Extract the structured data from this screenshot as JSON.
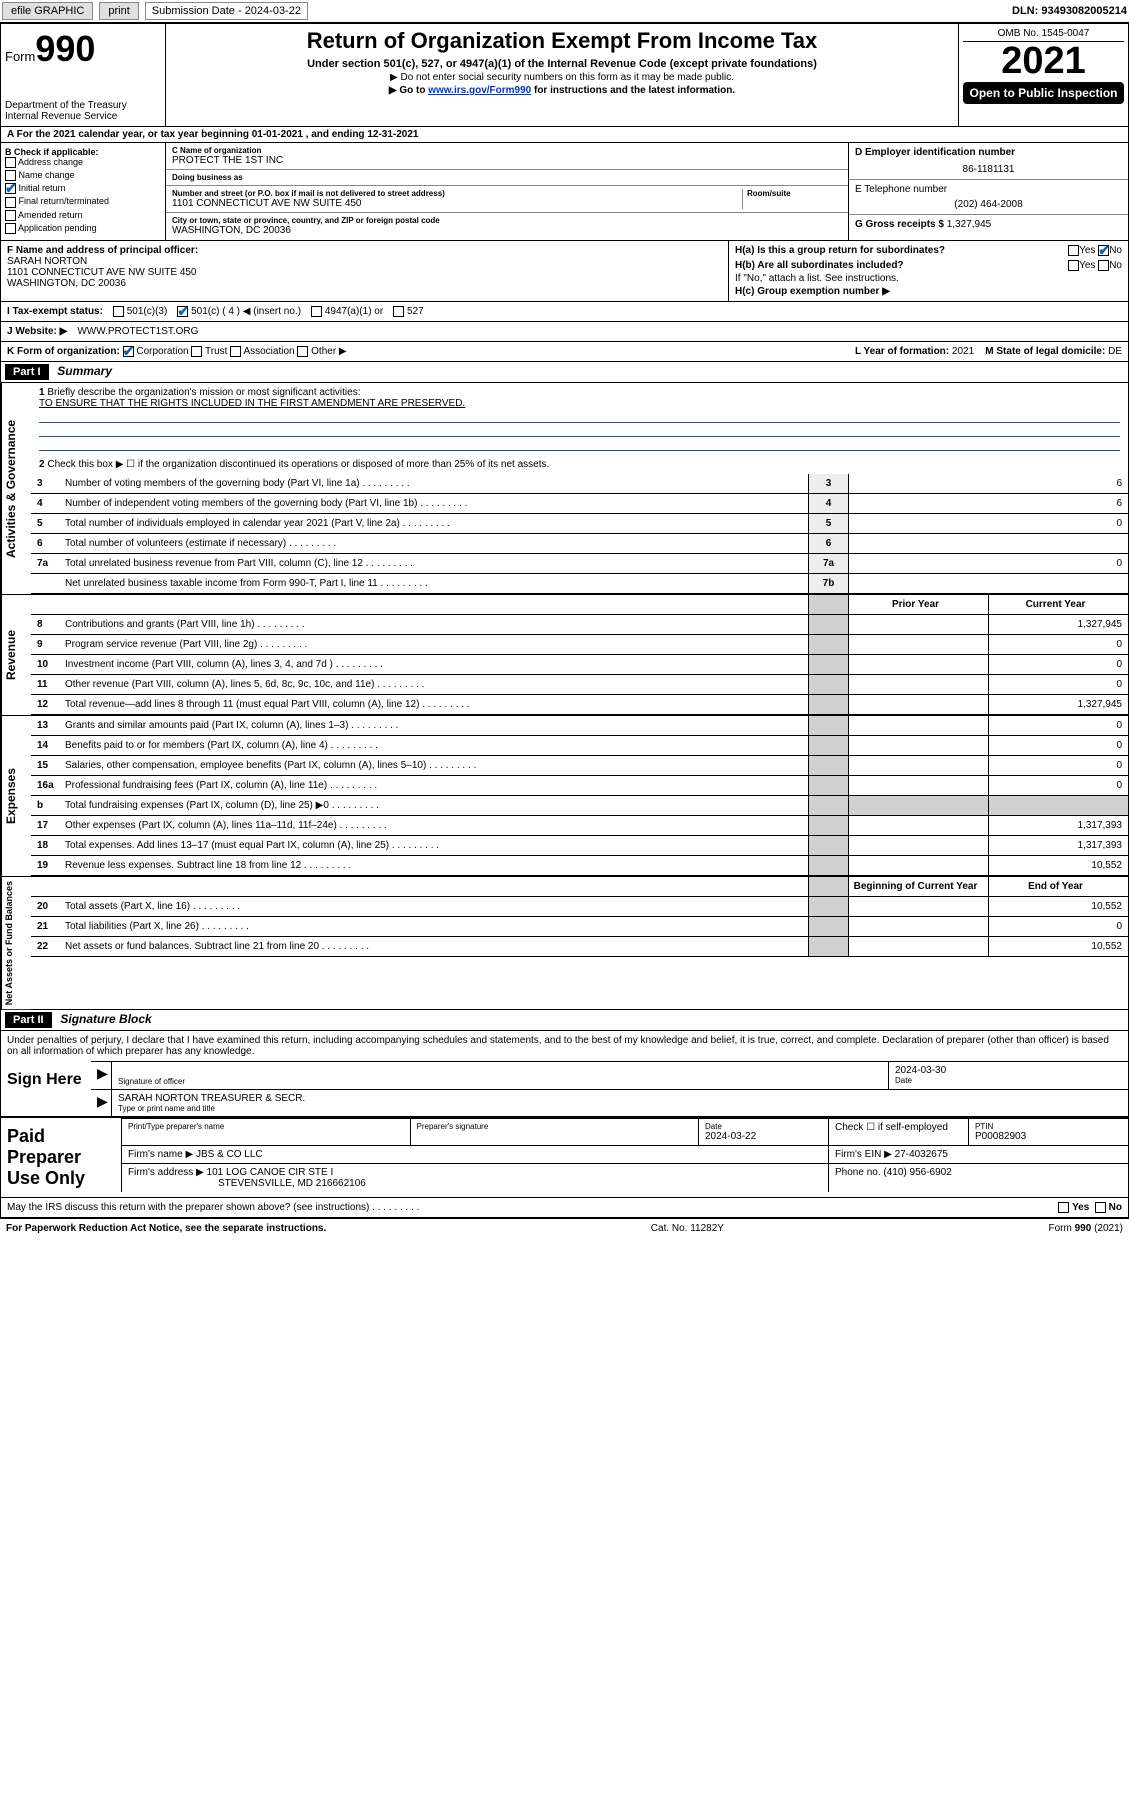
{
  "topbar": {
    "efile": "efile GRAPHIC",
    "print": "print",
    "sub_date_label": "Submission Date - 2024-03-22",
    "dln": "DLN: 93493082005214"
  },
  "header": {
    "form_label": "Form",
    "form_number": "990",
    "dept": "Department of the Treasury",
    "irs": "Internal Revenue Service",
    "title": "Return of Organization Exempt From Income Tax",
    "subtitle": "Under section 501(c), 527, or 4947(a)(1) of the Internal Revenue Code (except private foundations)",
    "note1": "▶ Do not enter social security numbers on this form as it may be made public.",
    "note2_pre": "▶ Go to ",
    "note2_link": "www.irs.gov/Form990",
    "note2_post": " for instructions and the latest information.",
    "omb": "OMB No. 1545-0047",
    "year": "2021",
    "open": "Open to Public Inspection"
  },
  "row_a": "A For the 2021 calendar year, or tax year beginning 01-01-2021    , and ending 12-31-2021",
  "col_b": {
    "label": "B Check if applicable:",
    "opts": [
      "Address change",
      "Name change",
      "Initial return",
      "Final return/terminated",
      "Amended return",
      "Application pending"
    ],
    "checked_idx": 2
  },
  "col_c": {
    "name_lbl": "C Name of organization",
    "name": "PROTECT THE 1ST INC",
    "dba_lbl": "Doing business as",
    "dba": "",
    "addr_lbl": "Number and street (or P.O. box if mail is not delivered to street address)",
    "room_lbl": "Room/suite",
    "addr": "1101 CONNECTICUT AVE NW SUITE 450",
    "city_lbl": "City or town, state or province, country, and ZIP or foreign postal code",
    "city": "WASHINGTON, DC  20036"
  },
  "col_de": {
    "d_lbl": "D Employer identification number",
    "d_val": "86-1181131",
    "e_lbl": "E Telephone number",
    "e_val": "(202) 464-2008",
    "g_lbl": "G Gross receipts $",
    "g_val": "1,327,945"
  },
  "f": {
    "lbl": "F Name and address of principal officer:",
    "name": "SARAH NORTON",
    "addr1": "1101 CONNECTICUT AVE NW SUITE 450",
    "addr2": "WASHINGTON, DC  20036"
  },
  "h": {
    "a": "H(a)  Is this a group return for subordinates?",
    "a_yes": "Yes",
    "a_no": "No",
    "b": "H(b)  Are all subordinates included?",
    "b_yes": "Yes",
    "b_no": "No",
    "b_note": "If \"No,\" attach a list. See instructions.",
    "c": "H(c)  Group exemption number ▶"
  },
  "i": {
    "lbl": "I    Tax-exempt status:",
    "o1": "501(c)(3)",
    "o2": "501(c) ( 4 ) ◀ (insert no.)",
    "o3": "4947(a)(1) or",
    "o4": "527"
  },
  "j": {
    "lbl": "J    Website: ▶",
    "val": "WWW.PROTECT1ST.ORG"
  },
  "k": {
    "lbl": "K Form of organization:",
    "o1": "Corporation",
    "o2": "Trust",
    "o3": "Association",
    "o4": "Other ▶",
    "l_lbl": "L Year of formation:",
    "l_val": "2021",
    "m_lbl": "M State of legal domicile:",
    "m_val": "DE"
  },
  "part1": {
    "hdr": "Part I",
    "title": "Summary",
    "q1": "Briefly describe the organization's mission or most significant activities:",
    "mission": "TO ENSURE THAT THE RIGHTS INCLUDED IN THE FIRST AMENDMENT ARE PRESERVED.",
    "q2": "Check this box ▶ ☐  if the organization discontinued its operations or disposed of more than 25% of its net assets.",
    "lines_gov": [
      {
        "n": "3",
        "t": "Number of voting members of the governing body (Part VI, line 1a)",
        "box": "3",
        "v": "6"
      },
      {
        "n": "4",
        "t": "Number of independent voting members of the governing body (Part VI, line 1b)",
        "box": "4",
        "v": "6"
      },
      {
        "n": "5",
        "t": "Total number of individuals employed in calendar year 2021 (Part V, line 2a)",
        "box": "5",
        "v": "0"
      },
      {
        "n": "6",
        "t": "Total number of volunteers (estimate if necessary)",
        "box": "6",
        "v": ""
      },
      {
        "n": "7a",
        "t": "Total unrelated business revenue from Part VIII, column (C), line 12",
        "box": "7a",
        "v": "0"
      },
      {
        "n": "",
        "t": "Net unrelated business taxable income from Form 990-T, Part I, line 11",
        "box": "7b",
        "v": ""
      }
    ],
    "hdr_prior": "Prior Year",
    "hdr_curr": "Current Year",
    "rev": [
      {
        "n": "8",
        "t": "Contributions and grants (Part VIII, line 1h)",
        "p": "",
        "c": "1,327,945"
      },
      {
        "n": "9",
        "t": "Program service revenue (Part VIII, line 2g)",
        "p": "",
        "c": "0"
      },
      {
        "n": "10",
        "t": "Investment income (Part VIII, column (A), lines 3, 4, and 7d )",
        "p": "",
        "c": "0"
      },
      {
        "n": "11",
        "t": "Other revenue (Part VIII, column (A), lines 5, 6d, 8c, 9c, 10c, and 11e)",
        "p": "",
        "c": "0"
      },
      {
        "n": "12",
        "t": "Total revenue—add lines 8 through 11 (must equal Part VIII, column (A), line 12)",
        "p": "",
        "c": "1,327,945"
      }
    ],
    "exp": [
      {
        "n": "13",
        "t": "Grants and similar amounts paid (Part IX, column (A), lines 1–3)",
        "p": "",
        "c": "0"
      },
      {
        "n": "14",
        "t": "Benefits paid to or for members (Part IX, column (A), line 4)",
        "p": "",
        "c": "0"
      },
      {
        "n": "15",
        "t": "Salaries, other compensation, employee benefits (Part IX, column (A), lines 5–10)",
        "p": "",
        "c": "0"
      },
      {
        "n": "16a",
        "t": "Professional fundraising fees (Part IX, column (A), line 11e)",
        "p": "",
        "c": "0"
      },
      {
        "n": "b",
        "t": "Total fundraising expenses (Part IX, column (D), line 25) ▶0",
        "p": "shade",
        "c": "shade"
      },
      {
        "n": "17",
        "t": "Other expenses (Part IX, column (A), lines 11a–11d, 11f–24e)",
        "p": "",
        "c": "1,317,393"
      },
      {
        "n": "18",
        "t": "Total expenses. Add lines 13–17 (must equal Part IX, column (A), line 25)",
        "p": "",
        "c": "1,317,393"
      },
      {
        "n": "19",
        "t": "Revenue less expenses. Subtract line 18 from line 12",
        "p": "",
        "c": "10,552"
      }
    ],
    "hdr_beg": "Beginning of Current Year",
    "hdr_end": "End of Year",
    "net": [
      {
        "n": "20",
        "t": "Total assets (Part X, line 16)",
        "p": "",
        "c": "10,552"
      },
      {
        "n": "21",
        "t": "Total liabilities (Part X, line 26)",
        "p": "",
        "c": "0"
      },
      {
        "n": "22",
        "t": "Net assets or fund balances. Subtract line 21 from line 20",
        "p": "",
        "c": "10,552"
      }
    ]
  },
  "part2": {
    "hdr": "Part II",
    "title": "Signature Block",
    "decl": "Under penalties of perjury, I declare that I have examined this return, including accompanying schedules and statements, and to the best of my knowledge and belief, it is true, correct, and complete. Declaration of preparer (other than officer) is based on all information of which preparer has any knowledge.",
    "sign_here": "Sign Here",
    "sig_lbl": "Signature of officer",
    "date_lbl": "Date",
    "sig_date": "2024-03-30",
    "name_title": "SARAH NORTON  TREASURER & SECR.",
    "name_lbl": "Type or print name and title",
    "paid": "Paid Preparer Use Only",
    "p_name_lbl": "Print/Type preparer's name",
    "p_sig_lbl": "Preparer's signature",
    "p_date_lbl": "Date",
    "p_date": "2024-03-22",
    "p_check": "Check ☐ if self-employed",
    "ptin_lbl": "PTIN",
    "ptin": "P00082903",
    "firm_name_lbl": "Firm's name    ▶",
    "firm_name": "JBS & CO LLC",
    "firm_ein_lbl": "Firm's EIN ▶",
    "firm_ein": "27-4032675",
    "firm_addr_lbl": "Firm's address ▶",
    "firm_addr1": "101 LOG CANOE CIR STE I",
    "firm_addr2": "STEVENSVILLE, MD  216662106",
    "phone_lbl": "Phone no.",
    "phone": "(410) 956-6902",
    "irs_q": "May the IRS discuss this return with the preparer shown above? (see instructions)",
    "yes": "Yes",
    "no": "No"
  },
  "footer": {
    "left": "For Paperwork Reduction Act Notice, see the separate instructions.",
    "mid": "Cat. No. 11282Y",
    "right": "Form 990 (2021)"
  },
  "labels": {
    "activities": "Activities & Governance",
    "revenue": "Revenue",
    "expenses": "Expenses",
    "net": "Net Assets or Fund Balances"
  }
}
